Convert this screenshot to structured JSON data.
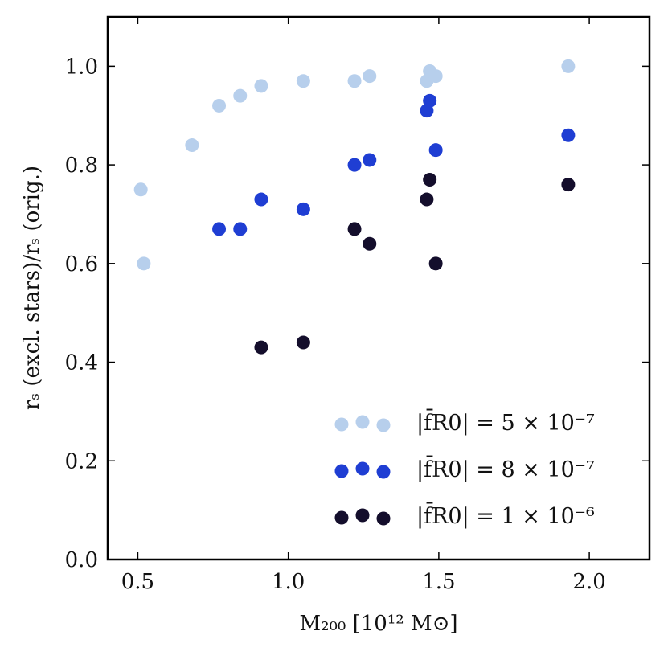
{
  "chart_data": {
    "type": "scatter",
    "title": "",
    "xlabel": "M₂₀₀ [10¹² M⊙]",
    "ylabel": "rₛ (excl. stars)/rₛ (orig.)",
    "xlim": [
      0.4,
      2.2
    ],
    "ylim": [
      0.0,
      1.1
    ],
    "xticks": [
      0.5,
      1.0,
      1.5,
      2.0
    ],
    "xtick_labels": [
      "0.5",
      "1.0",
      "1.5",
      "2.0"
    ],
    "yticks": [
      0.0,
      0.2,
      0.4,
      0.6,
      0.8,
      1.0
    ],
    "ytick_labels": [
      "0.0",
      "0.2",
      "0.4",
      "0.6",
      "0.8",
      "1.0"
    ],
    "grid": false,
    "legend_position": "bottom-right",
    "series": [
      {
        "name": "|f̄R0| = 5 × 10⁻⁷",
        "color": "#b7cfec",
        "x": [
          0.51,
          0.52,
          0.68,
          0.77,
          0.84,
          0.91,
          1.05,
          1.22,
          1.27,
          1.46,
          1.47,
          1.49,
          1.93
        ],
        "y": [
          0.75,
          0.6,
          0.84,
          0.92,
          0.94,
          0.96,
          0.97,
          0.97,
          0.98,
          0.97,
          0.99,
          0.98,
          1.0
        ]
      },
      {
        "name": "|f̄R0| = 8 × 10⁻⁷",
        "color": "#1f3ed3",
        "x": [
          0.77,
          0.84,
          0.91,
          1.05,
          1.22,
          1.27,
          1.46,
          1.47,
          1.49,
          1.93
        ],
        "y": [
          0.67,
          0.67,
          0.73,
          0.71,
          0.8,
          0.81,
          0.91,
          0.93,
          0.83,
          0.86
        ]
      },
      {
        "name": "|f̄R0| = 1 × 10⁻⁶",
        "color": "#140e2c",
        "x": [
          0.91,
          1.05,
          1.22,
          1.27,
          1.46,
          1.47,
          1.49,
          1.93
        ],
        "y": [
          0.43,
          0.44,
          0.67,
          0.64,
          0.73,
          0.77,
          0.6,
          0.76
        ]
      }
    ]
  }
}
